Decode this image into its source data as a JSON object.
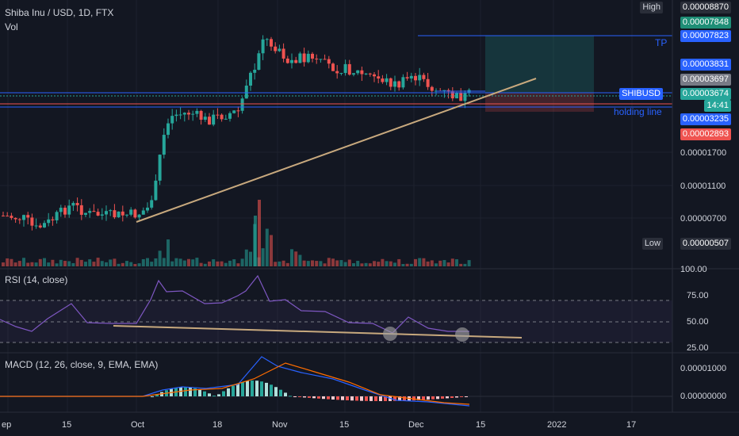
{
  "header": {
    "symbol_line": "Shiba Inu / USD, 1D, FTX",
    "volume_label": "Vol",
    "rsi_title": "RSI (14, close)",
    "macd_title": "MACD (12, 26, close, 9, EMA, EMA)"
  },
  "annotations": {
    "tp_label": "TP",
    "holding_label": "holding line",
    "high_tag": "High",
    "low_tag": "Low",
    "symbol_tag": "SHIBUSD",
    "countdown": "14:41"
  },
  "price_labels": {
    "high": "0.00008870",
    "target_1": "0.00007848",
    "tp": "0.00007823",
    "level_1": "0.00003831",
    "level_2": "0.00003697",
    "last": "0.00003674",
    "holding": "0.00003235",
    "stop": "0.00002893",
    "low": "0.00000507"
  },
  "price_axis_ticks": [
    "0.00001700",
    "0.00001100",
    "0.00000700"
  ],
  "rsi_axis_ticks": [
    "100.00",
    "75.00",
    "50.00",
    "25.00"
  ],
  "macd_axis_ticks": [
    "0.00001000",
    "0.00000000"
  ],
  "time_axis_ticks": [
    "ep",
    "15",
    "Oct",
    "18",
    "Nov",
    "15",
    "Dec",
    "15",
    "2022",
    "17"
  ],
  "colors": {
    "background": "#131722",
    "up": "#26a69a",
    "down": "#ef5350",
    "trendline": "#c8a97e",
    "tp_line": "#2962ff",
    "holding_line": "#2962ff",
    "rsi_line": "#7e57c2",
    "macd_line": "#2962ff",
    "signal_line": "#ff6d00"
  },
  "chart_data": {
    "type": "candlestick",
    "x_range": [
      "2021-08-30",
      "2022-01-23"
    ],
    "y_scale": "log",
    "price_series": [
      {
        "date": "2021-09-01",
        "open": 7.3e-06,
        "high": 7.8e-06,
        "low": 6.9e-06,
        "close": 7.5e-06
      },
      {
        "date": "2021-09-10",
        "open": 7.5e-06,
        "high": 7.8e-06,
        "low": 6.3e-06,
        "close": 6.8e-06
      },
      {
        "date": "2021-09-20",
        "open": 7e-06,
        "high": 9e-06,
        "low": 6.8e-06,
        "close": 8.2e-06
      },
      {
        "date": "2021-10-01",
        "open": 7e-06,
        "high": 7.5e-06,
        "low": 6.6e-06,
        "close": 7.4e-06
      },
      {
        "date": "2021-10-07",
        "open": 1.45e-05,
        "high": 3.3e-05,
        "low": 1.4e-05,
        "close": 2.85e-05
      },
      {
        "date": "2021-10-18",
        "open": 2.7e-05,
        "high": 3e-05,
        "low": 2.55e-05,
        "close": 2.85e-05
      },
      {
        "date": "2021-10-28",
        "open": 5.6e-05,
        "high": 8.87e-05,
        "low": 4.8e-05,
        "close": 7e-05
      },
      {
        "date": "2021-11-15",
        "open": 5.2e-05,
        "high": 5.6e-05,
        "low": 4.8e-05,
        "close": 5.1e-05
      },
      {
        "date": "2021-12-01",
        "open": 4.5e-05,
        "high": 4.8e-05,
        "low": 4e-05,
        "close": 4.1e-05
      },
      {
        "date": "2021-12-11",
        "open": 3.55e-05,
        "high": 3.8e-05,
        "low": 3.45e-05,
        "close": 3.67e-05
      }
    ],
    "rsi": {
      "levels": [
        30,
        50,
        70
      ],
      "range": [
        25,
        100
      ]
    },
    "macd": {
      "zero_line": 0
    }
  }
}
